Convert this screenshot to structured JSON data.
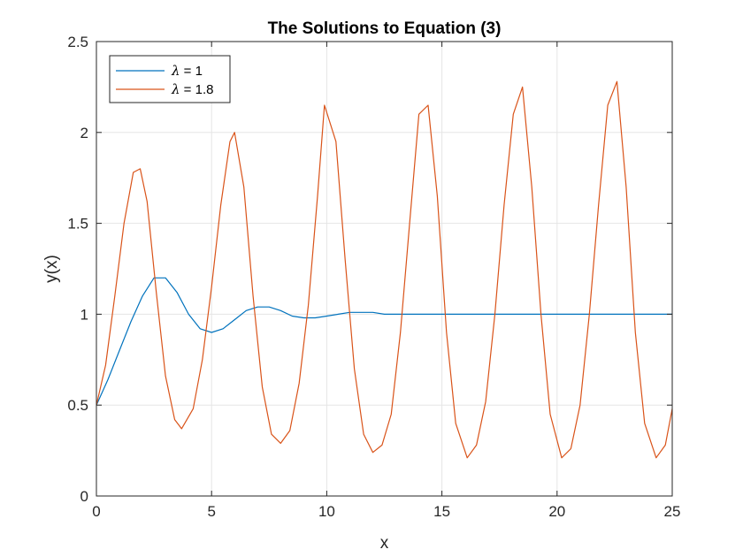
{
  "chart_data": {
    "type": "line",
    "title": "The Solutions to Equation (3)",
    "xlabel": "x",
    "ylabel": "y(x)",
    "xlim": [
      0,
      25
    ],
    "ylim": [
      0,
      2.5
    ],
    "xticks": [
      0,
      5,
      10,
      15,
      20,
      25
    ],
    "xtick_labels": [
      "0",
      "5",
      "10",
      "15",
      "20",
      "25"
    ],
    "yticks": [
      0,
      0.5,
      1,
      1.5,
      2,
      2.5
    ],
    "ytick_labels": [
      "0",
      "0.5",
      "1",
      "1.5",
      "2",
      "2.5"
    ],
    "grid": true,
    "legend_position": "top-left",
    "series": [
      {
        "name": "λ = 1",
        "legend_symbol": "λ",
        "legend_suffix": " = 1",
        "color": "#0072BD",
        "x": [
          0,
          0.5,
          1,
          1.5,
          2,
          2.5,
          3,
          3.5,
          4,
          4.5,
          5,
          5.5,
          6,
          6.5,
          7,
          7.5,
          8,
          8.5,
          9,
          9.5,
          10,
          10.5,
          11,
          11.5,
          12,
          12.5,
          13,
          13.5,
          14,
          14.5,
          15,
          15.5,
          16,
          16.5,
          17,
          17.5,
          18,
          18.5,
          19,
          19.5,
          20,
          20.5,
          21,
          21.5,
          22,
          22.5,
          23,
          23.5,
          24,
          24.5,
          25
        ],
        "y": [
          0.5,
          0.64,
          0.8,
          0.96,
          1.1,
          1.2,
          1.2,
          1.12,
          1.0,
          0.92,
          0.9,
          0.92,
          0.97,
          1.02,
          1.04,
          1.04,
          1.02,
          0.99,
          0.98,
          0.98,
          0.99,
          1.0,
          1.01,
          1.01,
          1.01,
          1.0,
          1.0,
          1.0,
          1.0,
          1.0,
          1.0,
          1.0,
          1.0,
          1.0,
          1.0,
          1.0,
          1.0,
          1.0,
          1.0,
          1.0,
          1.0,
          1.0,
          1.0,
          1.0,
          1.0,
          1.0,
          1.0,
          1.0,
          1.0,
          1.0,
          1.0
        ]
      },
      {
        "name": "λ = 1.8",
        "legend_symbol": "λ",
        "legend_suffix": " = 1.8",
        "color": "#D95319",
        "x": [
          0,
          0.4,
          0.8,
          1.2,
          1.6,
          1.9,
          2.2,
          2.6,
          3.0,
          3.4,
          3.7,
          4.2,
          4.6,
          5.0,
          5.4,
          5.8,
          6.0,
          6.4,
          6.8,
          7.2,
          7.6,
          8.0,
          8.4,
          8.8,
          9.2,
          9.6,
          9.9,
          10.4,
          10.8,
          11.2,
          11.6,
          12.0,
          12.4,
          12.8,
          13.2,
          13.6,
          14.0,
          14.4,
          14.8,
          15.2,
          15.6,
          16.1,
          16.5,
          16.9,
          17.3,
          17.7,
          18.1,
          18.5,
          18.9,
          19.3,
          19.7,
          20.2,
          20.6,
          21.0,
          21.4,
          21.8,
          22.2,
          22.6,
          23.0,
          23.4,
          23.8,
          24.3,
          24.7,
          25.0
        ],
        "y": [
          0.5,
          0.72,
          1.1,
          1.5,
          1.78,
          1.8,
          1.62,
          1.12,
          0.66,
          0.42,
          0.37,
          0.48,
          0.75,
          1.15,
          1.6,
          1.95,
          2.0,
          1.7,
          1.1,
          0.6,
          0.34,
          0.29,
          0.36,
          0.62,
          1.05,
          1.65,
          2.15,
          1.95,
          1.3,
          0.7,
          0.34,
          0.24,
          0.28,
          0.45,
          0.9,
          1.5,
          2.1,
          2.15,
          1.65,
          0.9,
          0.4,
          0.21,
          0.28,
          0.52,
          1.0,
          1.6,
          2.1,
          2.25,
          1.7,
          1.0,
          0.45,
          0.21,
          0.26,
          0.5,
          1.0,
          1.6,
          2.15,
          2.28,
          1.7,
          0.9,
          0.4,
          0.21,
          0.28,
          0.48
        ]
      }
    ]
  }
}
